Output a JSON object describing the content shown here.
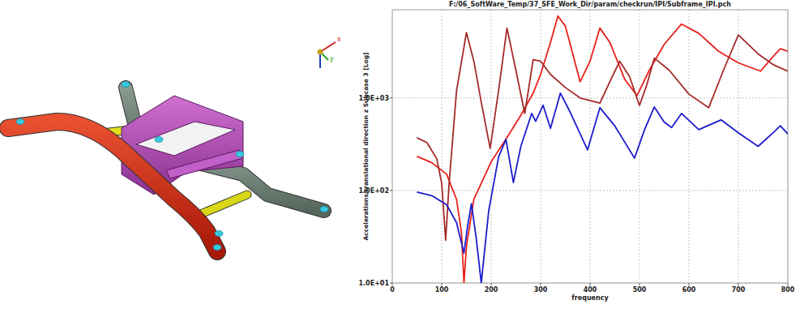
{
  "model_view": {
    "triad_labels": [
      "x",
      "y"
    ]
  },
  "chart_data": {
    "type": "line",
    "title": "F:/06_SoftWare_Temp/37_SFE_Work_Dir/param/checkrun/IPI/Subframe_IPI.pch",
    "x_label": "frequency",
    "y_label": "Accelerations/translational direction z  Subcase 3 [Log]",
    "log": "y",
    "grid": true,
    "xlim": [
      0,
      800
    ],
    "xticks": [
      0,
      100,
      200,
      300,
      400,
      500,
      600,
      700,
      800
    ],
    "ylim": [
      10,
      9000
    ],
    "yticks": [
      {
        "value": 10,
        "label": "1.0E+01"
      },
      {
        "value": 100,
        "label": "1.0E+02"
      },
      {
        "value": 1000,
        "label": "1.0E+03"
      }
    ],
    "series": [
      {
        "color": "#e8211c",
        "x": [
          50,
          80,
          110,
          130,
          140,
          145,
          150,
          165,
          200,
          230,
          260,
          285,
          300,
          320,
          335,
          350,
          380,
          400,
          420,
          440,
          470,
          495,
          520,
          550,
          585,
          620,
          660,
          700,
          745,
          770,
          785,
          800
        ],
        "values": [
          234,
          200,
          150,
          80,
          35,
          10,
          25,
          80,
          204,
          360,
          650,
          1130,
          1800,
          4000,
          7700,
          6000,
          1500,
          2500,
          5700,
          4000,
          1600,
          1060,
          2000,
          3800,
          6300,
          5000,
          3200,
          2400,
          1950,
          2800,
          3400,
          3200
        ]
      },
      {
        "color": "#a52a2a",
        "x": [
          50,
          70,
          90,
          100,
          108,
          115,
          130,
          150,
          165,
          180,
          198,
          215,
          232,
          250,
          268,
          285,
          300,
          320,
          350,
          380,
          420,
          440,
          460,
          480,
          500,
          515,
          530,
          560,
          600,
          640,
          670,
          700,
          740,
          770,
          800
        ],
        "values": [
          372,
          330,
          220,
          120,
          29,
          120,
          1200,
          5100,
          2500,
          900,
          286,
          1200,
          5700,
          2000,
          680,
          2600,
          2500,
          1800,
          1300,
          1000,
          880,
          1500,
          2500,
          1700,
          830,
          1400,
          2700,
          2000,
          1100,
          785,
          2000,
          4800,
          3000,
          2300,
          1950
        ]
      },
      {
        "color": "#1c1ccc",
        "x": [
          50,
          80,
          110,
          130,
          145,
          152,
          160,
          170,
          180,
          195,
          215,
          230,
          245,
          260,
          282,
          290,
          305,
          320,
          340,
          360,
          395,
          420,
          450,
          490,
          510,
          530,
          550,
          565,
          585,
          620,
          665,
          700,
          740,
          770,
          785,
          800
        ],
        "values": [
          96,
          88,
          70,
          45,
          21,
          40,
          72,
          30,
          10,
          60,
          230,
          357,
          122,
          300,
          680,
          560,
          835,
          470,
          1130,
          700,
          275,
          785,
          500,
          224,
          450,
          800,
          550,
          480,
          680,
          455,
          580,
          420,
          300,
          420,
          500,
          410
        ]
      }
    ]
  }
}
